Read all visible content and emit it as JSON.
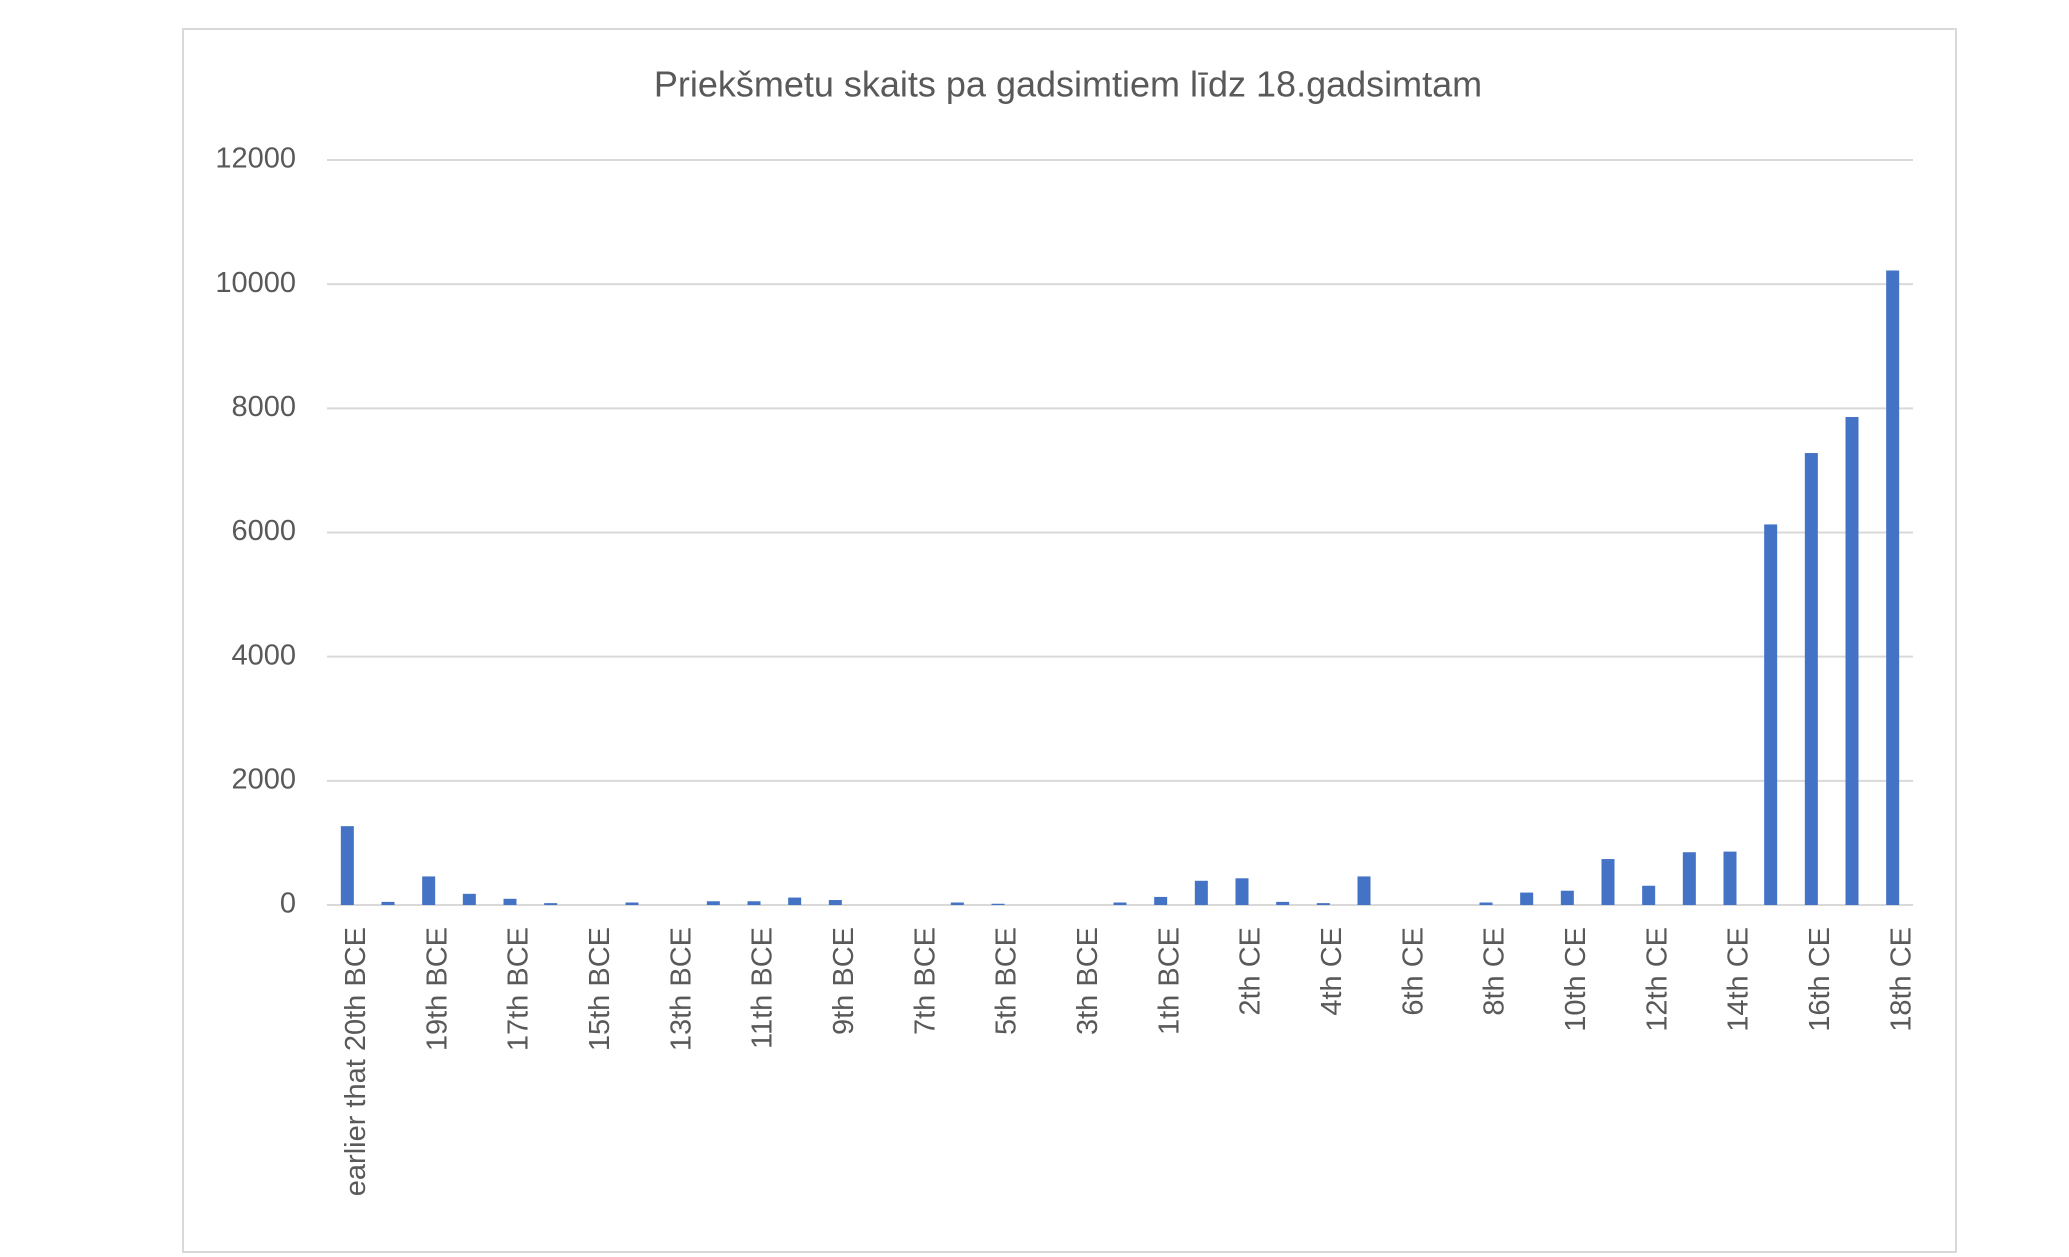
{
  "chart_data": {
    "type": "bar",
    "title": "Priekšmetu skaits pa gadsimtiem līdz 18.gadsimtam",
    "categories": [
      "earlier that 20th BCE",
      null,
      "19th BCE",
      null,
      "17th BCE",
      null,
      "15th BCE",
      null,
      "13th BCE",
      null,
      "11th BCE",
      null,
      "9th BCE",
      null,
      "7th BCE",
      null,
      "5th BCE",
      null,
      "3th BCE",
      null,
      "1th BCE",
      null,
      "2th CE",
      null,
      "4th CE",
      null,
      "6th CE",
      null,
      "8th CE",
      null,
      "10th CE",
      null,
      "12th CE",
      null,
      "14th CE",
      null,
      "16th CE",
      null,
      "18th CE"
    ],
    "values": [
      1270,
      50,
      460,
      180,
      100,
      30,
      0,
      40,
      0,
      60,
      60,
      120,
      80,
      0,
      0,
      40,
      20,
      0,
      0,
      40,
      130,
      390,
      430,
      50,
      30,
      460,
      0,
      0,
      40,
      200,
      230,
      740,
      310,
      850,
      860,
      6130,
      7280,
      7860,
      10220
    ],
    "color": "#4472c4",
    "ylim": [
      0,
      12000
    ],
    "yticks": [
      0,
      2000,
      4000,
      6000,
      8000,
      10000,
      12000
    ],
    "grid": true
  }
}
